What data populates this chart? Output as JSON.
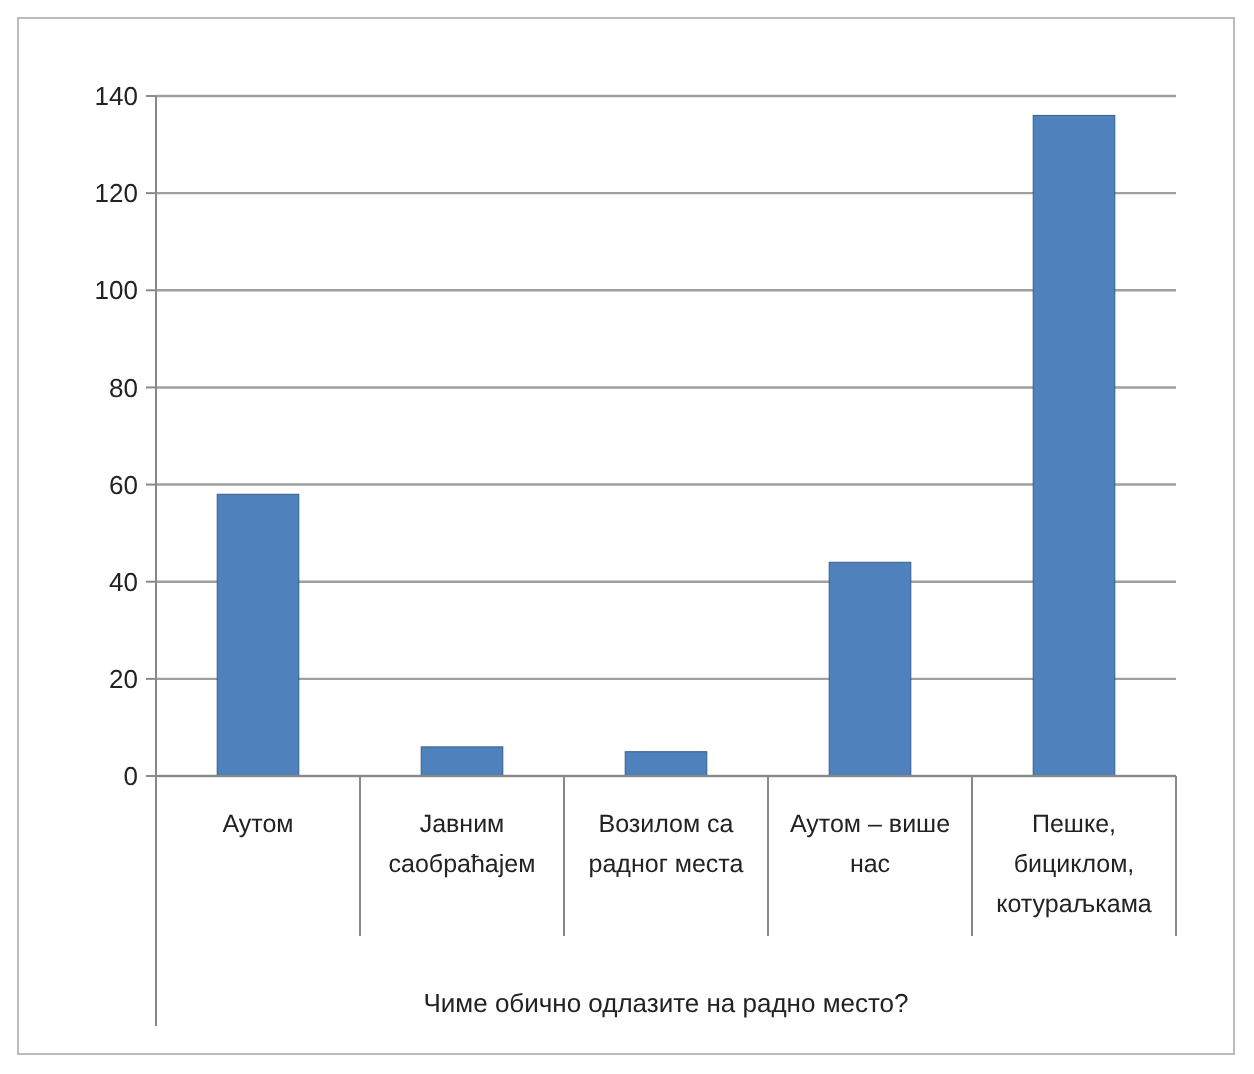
{
  "chart_data": {
    "type": "bar",
    "xlabel": "Чиме обично одлазите на радно место?",
    "categories": [
      "Аутом",
      "Јавним саобраћајем",
      "Возилом са радног места",
      "Аутом – више нас",
      "Пешке, бициклом, котураљкама"
    ],
    "values": [
      58,
      6,
      5,
      44,
      136
    ],
    "color": "#4f81bd",
    "ylim": [
      0,
      140
    ],
    "yticks": [
      0,
      20,
      40,
      60,
      80,
      100,
      120,
      140
    ],
    "grid": "y"
  }
}
